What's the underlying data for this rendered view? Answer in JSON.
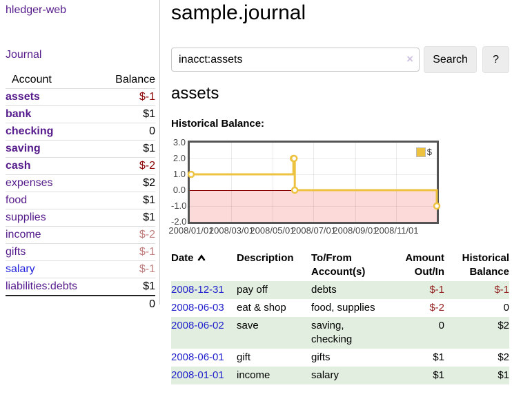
{
  "colors": {
    "link_purple": "#551a8b",
    "link_blue": "#2222cc",
    "negative_strong": "#8b0000",
    "negative_light": "#c07d7d",
    "table_negative": "#941f1f",
    "row_green": "#e2efe0",
    "chart_line": "#EDC240",
    "chart_negative_region": "#fcdada",
    "chart_zero_line": "#8b0000",
    "button_bg": "#ededed"
  },
  "sidebar": {
    "brand": "hledger-web",
    "journal_link": "Journal",
    "accounts_table": {
      "headers": {
        "account": "Account",
        "balance": "Balance"
      },
      "rows": [
        {
          "name": "assets",
          "balance": "$-1"
        },
        {
          "name": "bank",
          "balance": "$1"
        },
        {
          "name": "checking",
          "balance": "0"
        },
        {
          "name": "saving",
          "balance": "$1"
        },
        {
          "name": "cash",
          "balance": "$-2"
        },
        {
          "name": "expenses",
          "balance": "$2"
        },
        {
          "name": "food",
          "balance": "$1"
        },
        {
          "name": "supplies",
          "balance": "$1"
        },
        {
          "name": "income",
          "balance": "$-2"
        },
        {
          "name": "gifts",
          "balance": "$-1"
        },
        {
          "name": "salary",
          "balance": "$-1"
        },
        {
          "name": "liabilities:debts",
          "balance": "$1"
        }
      ],
      "total": "0"
    }
  },
  "header": {
    "title": "sample.journal"
  },
  "search": {
    "value": "inacct:assets",
    "clear_icon": "×",
    "button_label": "Search",
    "help_label": "?"
  },
  "account_page": {
    "heading": "assets",
    "chart_label": "Historical Balance:"
  },
  "chart_data": {
    "type": "line",
    "title": "Historical Balance",
    "step": true,
    "series": [
      {
        "name": "$",
        "color": "#EDC240",
        "points": [
          [
            "2008-01-01",
            1
          ],
          [
            "2008-06-01",
            2
          ],
          [
            "2008-06-02",
            2
          ],
          [
            "2008-06-03",
            0
          ],
          [
            "2008-12-31",
            -1
          ]
        ]
      }
    ],
    "x_range": [
      "2007-12-30",
      "2008-12-31"
    ],
    "y_range": [
      -2,
      3
    ],
    "x_ticks": [
      "2008-01-01",
      "2008-03-01",
      "2008-05-01",
      "2008-07-01",
      "2008-09-01",
      "2008-11-01"
    ],
    "x_ticklabels": [
      "2008/01/01",
      "2008/03/01",
      "2008/05/01",
      "2008/07/01",
      "2008/09/01",
      "2008/11/01"
    ],
    "y_ticks": [
      3,
      2,
      1,
      0,
      -1,
      -2
    ],
    "y_ticklabels": [
      "3.0",
      "2.0",
      "1.0",
      "0.0",
      "-1.0",
      "-2.0"
    ],
    "grid": true,
    "legend": {
      "label": "$",
      "position": "top-right"
    },
    "negative_region_color": "#fcdada",
    "zero_line_color": "#8b0000"
  },
  "transactions": {
    "headers": {
      "date": "Date",
      "description": "Description",
      "to_from": "To/From\nAccount(s)",
      "amount": "Amount\nOut/In",
      "balance": "Historical\nBalance"
    },
    "rows": [
      {
        "date": "2008-12-31",
        "description": "pay off",
        "to_from": "debts",
        "amount": "$-1",
        "balance": "$-1"
      },
      {
        "date": "2008-06-03",
        "description": "eat & shop",
        "to_from": "food, supplies",
        "amount": "$-2",
        "balance": "0"
      },
      {
        "date": "2008-06-02",
        "description": "save",
        "to_from": "saving,\nchecking",
        "amount": "0",
        "balance": "$2"
      },
      {
        "date": "2008-06-01",
        "description": "gift",
        "to_from": "gifts",
        "amount": "$1",
        "balance": "$2"
      },
      {
        "date": "2008-01-01",
        "description": "income",
        "to_from": "salary",
        "amount": "$1",
        "balance": "$1"
      }
    ]
  }
}
